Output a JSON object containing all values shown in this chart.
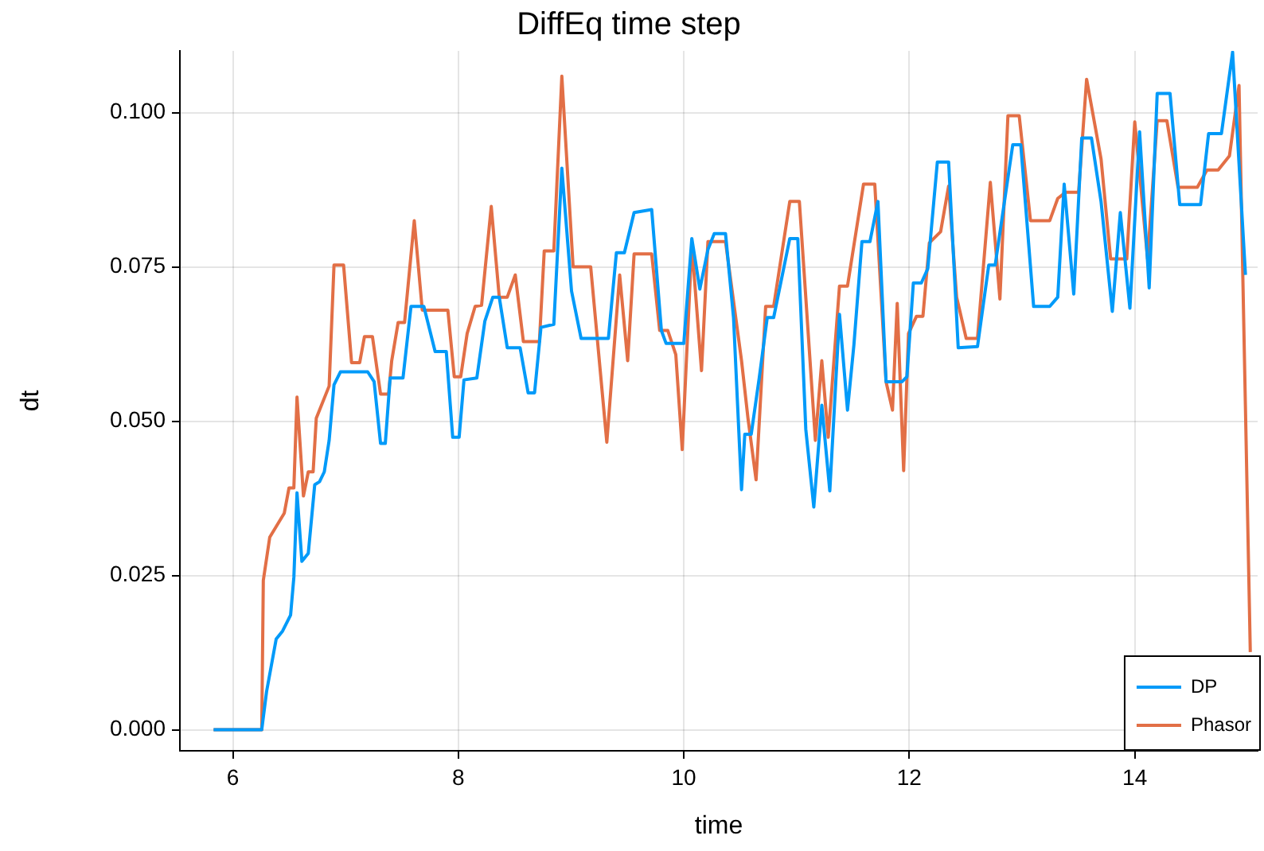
{
  "chart_data": {
    "type": "line",
    "title": "DiffEq time step",
    "xlabel": "time",
    "ylabel": "dt",
    "xlim": [
      5.53,
      15.09
    ],
    "xticks": [
      6,
      8,
      10,
      12,
      14
    ],
    "ylim": [
      -0.0034,
      0.11
    ],
    "yticks": [
      {
        "value": 0,
        "label": "0.000"
      },
      {
        "value": 0.025,
        "label": "0.025"
      },
      {
        "value": 0.05,
        "label": "0.050"
      },
      {
        "value": 0.075,
        "label": "0.075"
      },
      {
        "value": 0.1,
        "label": "0.100"
      }
    ],
    "grid": true,
    "legend": "bottom right",
    "series": [
      {
        "name": "DP",
        "color": "#009af9",
        "x": [
          5.829,
          6.256,
          6.299,
          6.384,
          6.441,
          6.512,
          6.541,
          6.569,
          6.612,
          6.669,
          6.726,
          6.769,
          6.811,
          6.854,
          6.897,
          6.954,
          7.196,
          7.253,
          7.31,
          7.352,
          7.395,
          7.509,
          7.58,
          7.694,
          7.794,
          7.893,
          7.95,
          8.007,
          8.05,
          8.164,
          8.235,
          8.306,
          8.363,
          8.434,
          8.548,
          8.619,
          8.676,
          8.733,
          8.847,
          8.918,
          9.004,
          9.089,
          9.331,
          9.402,
          9.473,
          9.559,
          9.715,
          9.801,
          9.843,
          10.0,
          10.071,
          10.142,
          10.214,
          10.27,
          10.37,
          10.441,
          10.512,
          10.541,
          10.598,
          10.669,
          10.74,
          10.797,
          10.94,
          11.011,
          11.082,
          11.153,
          11.224,
          11.295,
          11.381,
          11.452,
          11.509,
          11.58,
          11.651,
          11.722,
          11.794,
          11.936,
          11.979,
          12.036,
          12.107,
          12.164,
          12.249,
          12.349,
          12.434,
          12.605,
          12.705,
          12.762,
          12.918,
          12.989,
          13.103,
          13.246,
          13.317,
          13.374,
          13.459,
          13.53,
          13.616,
          13.701,
          13.801,
          13.872,
          13.957,
          14.043,
          14.128,
          14.199,
          14.313,
          14.399,
          14.584,
          14.655,
          14.769,
          14.868,
          14.982
        ],
        "values": [
          0,
          0,
          0.0062,
          0.0147,
          0.016,
          0.0186,
          0.0247,
          0.0384,
          0.0273,
          0.0286,
          0.0397,
          0.0402,
          0.0418,
          0.0469,
          0.0559,
          0.058,
          0.058,
          0.0564,
          0.0464,
          0.0464,
          0.057,
          0.057,
          0.0686,
          0.0686,
          0.0613,
          0.0613,
          0.0474,
          0.0474,
          0.0567,
          0.057,
          0.0662,
          0.0701,
          0.0701,
          0.0619,
          0.0619,
          0.0546,
          0.0546,
          0.0652,
          0.0657,
          0.091,
          0.0711,
          0.0634,
          0.0634,
          0.0773,
          0.0773,
          0.0838,
          0.0843,
          0.0647,
          0.0626,
          0.0626,
          0.0796,
          0.0714,
          0.0778,
          0.0804,
          0.0804,
          0.0668,
          0.0389,
          0.0479,
          0.0479,
          0.057,
          0.0668,
          0.0668,
          0.0796,
          0.0796,
          0.0487,
          0.0361,
          0.0526,
          0.0387,
          0.0673,
          0.0518,
          0.0624,
          0.0791,
          0.0791,
          0.0856,
          0.0564,
          0.0564,
          0.0572,
          0.0724,
          0.0724,
          0.0747,
          0.092,
          0.092,
          0.0619,
          0.0621,
          0.0753,
          0.0753,
          0.0948,
          0.0948,
          0.0686,
          0.0686,
          0.0701,
          0.0884,
          0.0706,
          0.0959,
          0.0959,
          0.0856,
          0.0678,
          0.0838,
          0.0683,
          0.0969,
          0.0716,
          0.1031,
          0.1031,
          0.0851,
          0.0851,
          0.0966,
          0.0966,
          0.1098,
          0.0737
        ]
      },
      {
        "name": "Phasor",
        "color": "#e26f46",
        "x": [
          5.829,
          6.256,
          6.27,
          6.327,
          6.456,
          6.498,
          6.541,
          6.569,
          6.626,
          6.669,
          6.712,
          6.74,
          6.854,
          6.897,
          6.982,
          7.053,
          7.125,
          7.167,
          7.238,
          7.31,
          7.381,
          7.409,
          7.466,
          7.523,
          7.609,
          7.68,
          7.907,
          7.964,
          8.021,
          8.078,
          8.149,
          8.206,
          8.292,
          8.363,
          8.434,
          8.505,
          8.577,
          8.719,
          8.762,
          8.847,
          8.918,
          9.018,
          9.174,
          9.317,
          9.431,
          9.502,
          9.559,
          9.715,
          9.786,
          9.858,
          9.929,
          9.986,
          10.071,
          10.157,
          10.214,
          10.37,
          10.512,
          10.569,
          10.641,
          10.726,
          10.797,
          10.94,
          11.025,
          11.167,
          11.224,
          11.281,
          11.381,
          11.452,
          11.594,
          11.694,
          11.794,
          11.851,
          11.893,
          11.95,
          11.993,
          12.064,
          12.121,
          12.178,
          12.278,
          12.349,
          12.42,
          12.505,
          12.605,
          12.719,
          12.804,
          12.875,
          12.975,
          13.075,
          13.246,
          13.317,
          13.388,
          13.502,
          13.573,
          13.701,
          13.786,
          13.929,
          14.0,
          14.114,
          14.199,
          14.285,
          14.384,
          14.555,
          14.641,
          14.74,
          14.84,
          14.925,
          15.025
        ],
        "values": [
          0,
          0,
          0.0242,
          0.0312,
          0.0351,
          0.0392,
          0.0392,
          0.0539,
          0.0379,
          0.0418,
          0.0418,
          0.0505,
          0.0557,
          0.0753,
          0.0753,
          0.0595,
          0.0595,
          0.0637,
          0.0637,
          0.0544,
          0.0544,
          0.0598,
          0.066,
          0.066,
          0.0825,
          0.068,
          0.068,
          0.0572,
          0.0572,
          0.0642,
          0.0686,
          0.0688,
          0.0848,
          0.0701,
          0.0701,
          0.0737,
          0.0629,
          0.0629,
          0.0776,
          0.0776,
          0.1059,
          0.075,
          0.075,
          0.0466,
          0.0737,
          0.0598,
          0.0771,
          0.0771,
          0.0647,
          0.0647,
          0.0608,
          0.0454,
          0.0786,
          0.0582,
          0.0791,
          0.0791,
          0.0598,
          0.0505,
          0.0405,
          0.0686,
          0.0686,
          0.0856,
          0.0856,
          0.0469,
          0.0598,
          0.0474,
          0.0719,
          0.0719,
          0.0884,
          0.0884,
          0.0564,
          0.0518,
          0.0691,
          0.042,
          0.0642,
          0.067,
          0.067,
          0.0789,
          0.0807,
          0.0881,
          0.0701,
          0.0634,
          0.0634,
          0.0887,
          0.0698,
          0.0995,
          0.0995,
          0.0825,
          0.0825,
          0.0861,
          0.0871,
          0.0871,
          0.1054,
          0.0925,
          0.0763,
          0.0763,
          0.0985,
          0.0763,
          0.0987,
          0.0987,
          0.0879,
          0.0879,
          0.0907,
          0.0907,
          0.093,
          0.1044,
          0.0126
        ]
      }
    ]
  }
}
